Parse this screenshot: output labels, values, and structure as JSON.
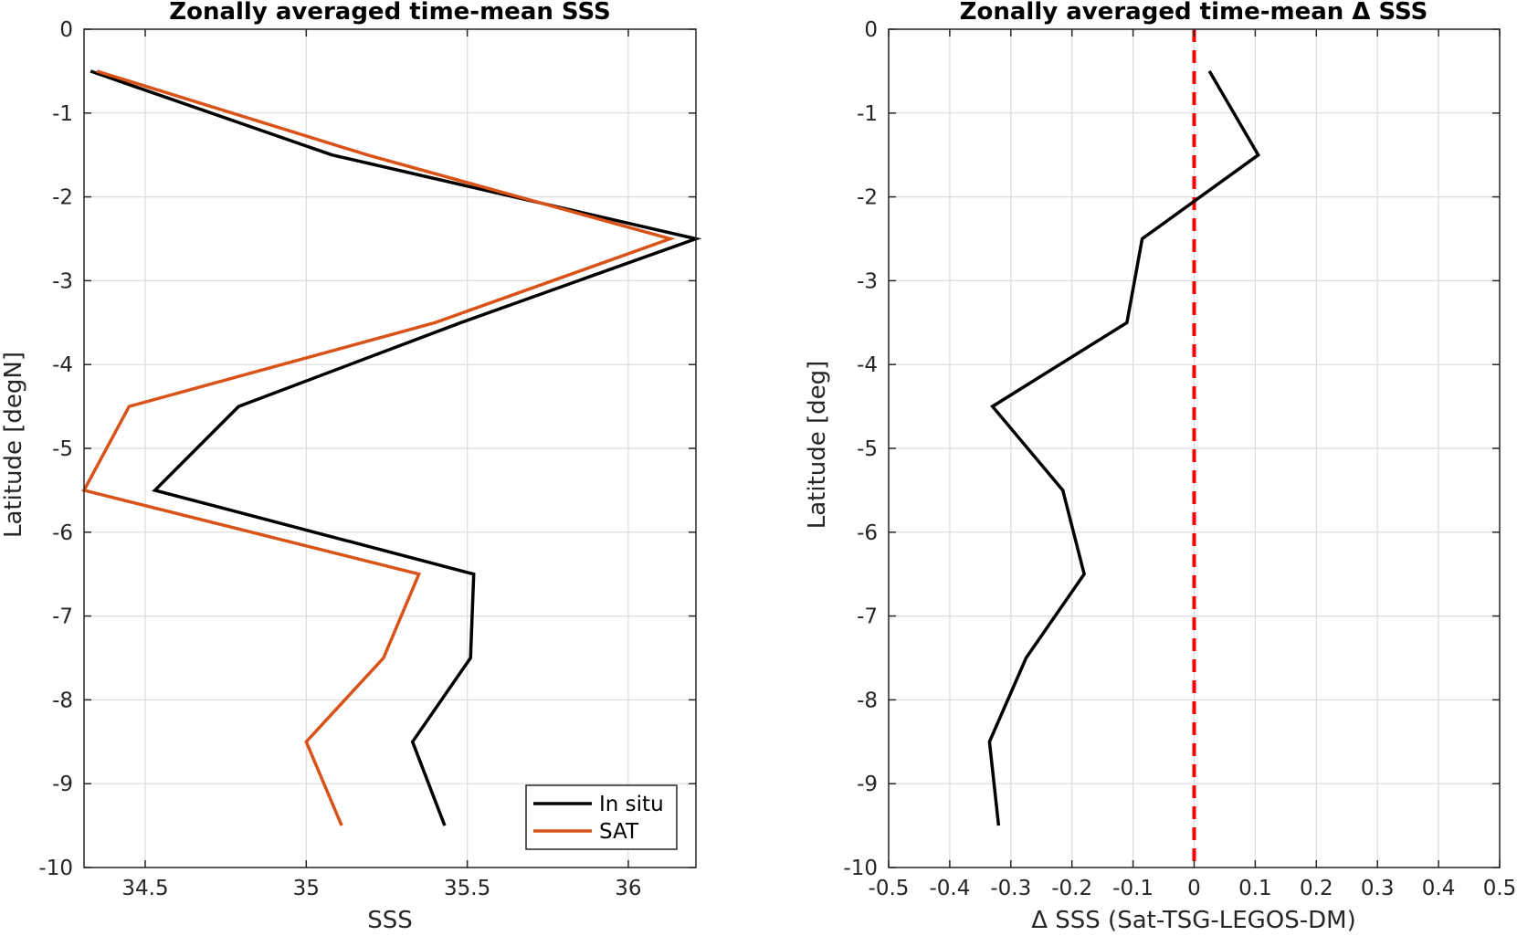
{
  "chart_data": [
    {
      "type": "line",
      "title": "Zonally averaged time-mean SSS",
      "xlabel": "SSS",
      "ylabel": "Latitude [degN]",
      "xlim": [
        34.31,
        36.21
      ],
      "ylim": [
        -10,
        0
      ],
      "xticks": [
        34.5,
        35,
        35.5,
        36
      ],
      "xtick_labels": [
        "34.5",
        "35",
        "35.5",
        "36"
      ],
      "yticks": [
        0,
        -1,
        -2,
        -3,
        -4,
        -5,
        -6,
        -7,
        -8,
        -9,
        -10
      ],
      "ytick_labels": [
        "0",
        "-1",
        "-2",
        "-3",
        "-4",
        "-5",
        "-6",
        "-7",
        "-8",
        "-9",
        "-10"
      ],
      "grid": true,
      "legend_position": "bottom-right",
      "series": [
        {
          "name": "In situ",
          "color": "#000000",
          "points": [
            {
              "x": 34.33,
              "y": -0.5
            },
            {
              "x": 35.08,
              "y": -1.5
            },
            {
              "x": 36.21,
              "y": -2.5
            },
            {
              "x": 35.48,
              "y": -3.5
            },
            {
              "x": 34.79,
              "y": -4.5
            },
            {
              "x": 34.53,
              "y": -5.5
            },
            {
              "x": 35.52,
              "y": -6.5
            },
            {
              "x": 35.51,
              "y": -7.5
            },
            {
              "x": 35.33,
              "y": -8.5
            },
            {
              "x": 35.43,
              "y": -9.5
            }
          ]
        },
        {
          "name": "SAT",
          "color": "#D95319",
          "points": [
            {
              "x": 34.35,
              "y": -0.5
            },
            {
              "x": 35.19,
              "y": -1.5
            },
            {
              "x": 36.13,
              "y": -2.5
            },
            {
              "x": 35.4,
              "y": -3.5
            },
            {
              "x": 34.45,
              "y": -4.5
            },
            {
              "x": 34.31,
              "y": -5.5
            },
            {
              "x": 35.35,
              "y": -6.5
            },
            {
              "x": 35.24,
              "y": -7.5
            },
            {
              "x": 35.0,
              "y": -8.5
            },
            {
              "x": 35.11,
              "y": -9.5
            }
          ]
        }
      ]
    },
    {
      "type": "line",
      "title": "Zonally averaged time-mean Δ SSS",
      "xlabel": "Δ SSS (Sat-TSG-LEGOS-DM)",
      "ylabel": "Latitude [deg]",
      "xlim": [
        -0.5,
        0.5
      ],
      "ylim": [
        -10,
        0
      ],
      "xticks": [
        -0.5,
        -0.4,
        -0.3,
        -0.2,
        -0.1,
        0,
        0.1,
        0.2,
        0.3,
        0.4,
        0.5
      ],
      "xtick_labels": [
        "-0.5",
        "-0.4",
        "-0.3",
        "-0.2",
        "-0.1",
        "0",
        "0.1",
        "0.2",
        "0.3",
        "0.4",
        "0.5"
      ],
      "yticks": [
        0,
        -1,
        -2,
        -3,
        -4,
        -5,
        -6,
        -7,
        -8,
        -9,
        -10
      ],
      "ytick_labels": [
        "0",
        "-1",
        "-2",
        "-3",
        "-4",
        "-5",
        "-6",
        "-7",
        "-8",
        "-9",
        "-10"
      ],
      "grid": true,
      "reference_line": {
        "x": 0,
        "color": "#FF0000",
        "style": "dashed"
      },
      "series": [
        {
          "color": "#000000",
          "points": [
            {
              "x": 0.025,
              "y": -0.5
            },
            {
              "x": 0.105,
              "y": -1.5
            },
            {
              "x": -0.085,
              "y": -2.5
            },
            {
              "x": -0.11,
              "y": -3.5
            },
            {
              "x": -0.33,
              "y": -4.5
            },
            {
              "x": -0.215,
              "y": -5.5
            },
            {
              "x": -0.18,
              "y": -6.5
            },
            {
              "x": -0.275,
              "y": -7.5
            },
            {
              "x": -0.335,
              "y": -8.5
            },
            {
              "x": -0.32,
              "y": -9.5
            }
          ]
        }
      ]
    }
  ]
}
